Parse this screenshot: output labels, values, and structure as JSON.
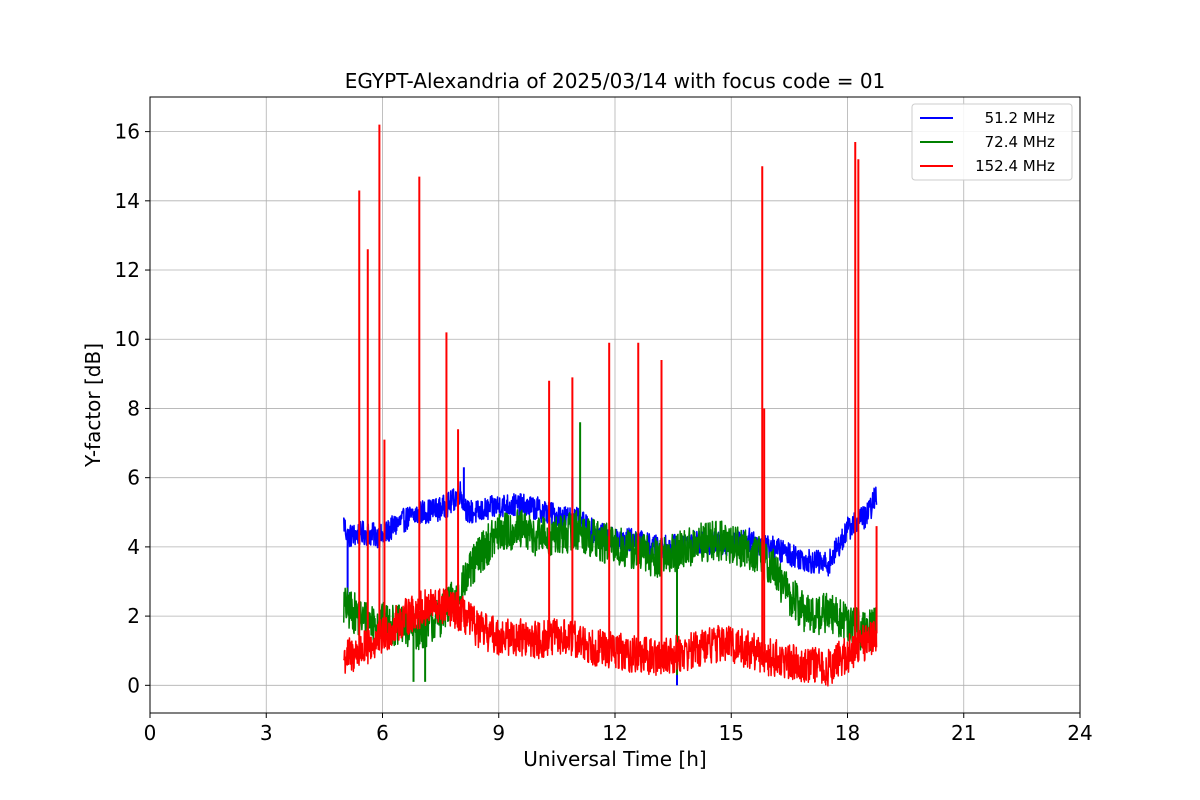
{
  "chart_data": {
    "type": "line",
    "title": "EGYPT-Alexandria of 2025/03/14 with focus code = 01",
    "xlabel": "Universal Time [h]",
    "ylabel": "Y-factor [dB]",
    "xlim": [
      0,
      24
    ],
    "ylim": [
      -0.8,
      17.0
    ],
    "xticks": [
      0,
      3,
      6,
      9,
      12,
      15,
      18,
      21,
      24
    ],
    "yticks": [
      0,
      2,
      4,
      6,
      8,
      10,
      12,
      14,
      16
    ],
    "grid": true,
    "legend_position": "top-right",
    "series": [
      {
        "name": "  51.2 MHz",
        "color": "#0000ff",
        "x": [
          5.0,
          5.1,
          5.5,
          6.0,
          6.3,
          6.6,
          7.0,
          7.5,
          7.8,
          8.0,
          8.2,
          8.5,
          9.0,
          9.5,
          10.0,
          10.5,
          11.0,
          11.5,
          12.0,
          12.5,
          13.0,
          13.5,
          14.0,
          14.5,
          15.0,
          15.5,
          16.0,
          16.5,
          17.0,
          17.5,
          18.0,
          18.3,
          18.5,
          18.75
        ],
        "y": [
          4.7,
          4.3,
          4.4,
          4.3,
          4.6,
          4.8,
          5.0,
          5.1,
          5.3,
          5.6,
          5.0,
          5.0,
          5.2,
          5.2,
          5.1,
          4.9,
          4.8,
          4.4,
          4.2,
          4.2,
          4.0,
          4.0,
          4.1,
          4.1,
          4.1,
          4.2,
          4.0,
          3.8,
          3.6,
          3.5,
          4.5,
          4.8,
          4.9,
          5.5
        ],
        "spikes": [
          [
            5.1,
            2.6
          ],
          [
            13.6,
            0.0
          ],
          [
            8.1,
            6.3
          ],
          [
            10.9,
            6.0
          ]
        ]
      },
      {
        "name": "  72.4 MHz",
        "color": "#008000",
        "x": [
          5.0,
          5.5,
          6.0,
          6.5,
          7.0,
          7.5,
          8.0,
          8.5,
          9.0,
          9.5,
          10.0,
          10.5,
          11.0,
          11.5,
          12.0,
          12.5,
          13.0,
          13.5,
          14.0,
          14.5,
          15.0,
          15.5,
          16.0,
          16.5,
          17.0,
          17.5,
          18.0,
          18.5,
          18.75
        ],
        "y": [
          2.3,
          1.9,
          1.8,
          1.7,
          1.6,
          2.0,
          2.7,
          3.8,
          4.4,
          4.5,
          4.3,
          4.3,
          4.5,
          4.2,
          4.0,
          3.9,
          3.7,
          3.8,
          4.0,
          4.2,
          4.1,
          3.9,
          3.5,
          2.6,
          2.0,
          2.1,
          1.8,
          1.5,
          1.8
        ],
        "spikes": [
          [
            11.1,
            7.6
          ],
          [
            6.8,
            0.1
          ],
          [
            7.1,
            0.1
          ],
          [
            13.6,
            0.3
          ]
        ]
      },
      {
        "name": "152.4 MHz",
        "color": "#ff0000",
        "x": [
          5.0,
          5.5,
          6.0,
          6.5,
          7.0,
          7.5,
          8.0,
          8.5,
          9.0,
          9.5,
          10.0,
          10.5,
          11.0,
          11.5,
          12.0,
          12.5,
          13.0,
          13.5,
          14.0,
          14.5,
          15.0,
          15.5,
          16.0,
          16.5,
          17.0,
          17.5,
          18.0,
          18.5,
          18.75
        ],
        "y": [
          0.8,
          1.0,
          1.4,
          1.9,
          2.2,
          2.3,
          2.1,
          1.6,
          1.4,
          1.4,
          1.3,
          1.4,
          1.3,
          1.1,
          1.0,
          0.9,
          0.8,
          0.9,
          1.0,
          1.2,
          1.2,
          1.0,
          0.8,
          0.7,
          0.6,
          0.5,
          0.9,
          1.3,
          1.5
        ],
        "spikes": [
          [
            5.4,
            14.3
          ],
          [
            5.62,
            12.6
          ],
          [
            5.92,
            16.2
          ],
          [
            6.05,
            7.1
          ],
          [
            6.95,
            14.7
          ],
          [
            7.65,
            10.2
          ],
          [
            7.95,
            7.4
          ],
          [
            10.3,
            8.8
          ],
          [
            10.9,
            8.9
          ],
          [
            11.85,
            9.9
          ],
          [
            12.6,
            9.9
          ],
          [
            13.2,
            9.4
          ],
          [
            15.8,
            15.0
          ],
          [
            15.85,
            8.0
          ],
          [
            18.2,
            15.7
          ],
          [
            18.28,
            15.2
          ],
          [
            18.75,
            4.6
          ]
        ]
      }
    ]
  }
}
